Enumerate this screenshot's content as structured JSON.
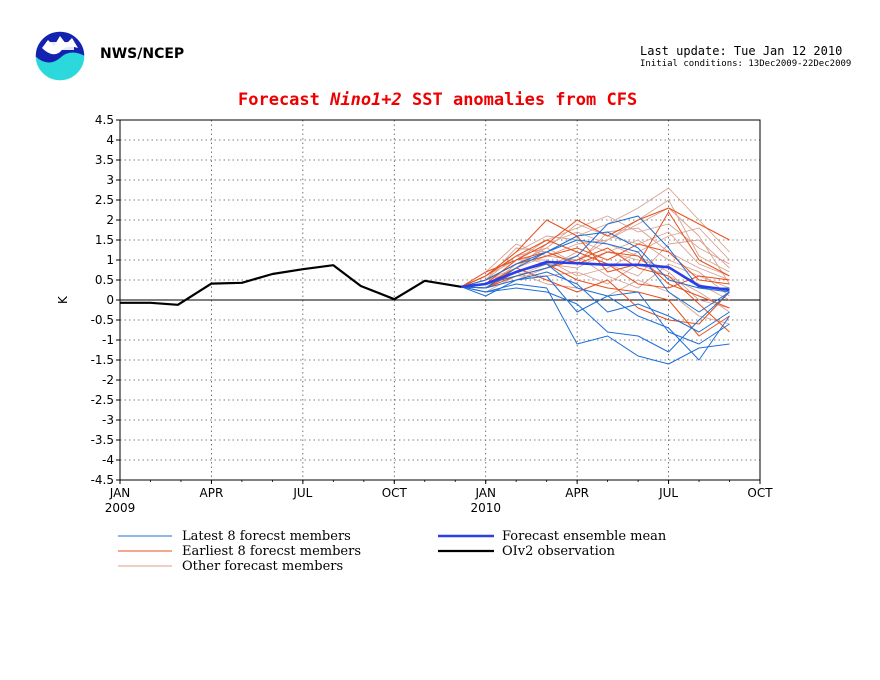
{
  "header": {
    "org": "NWS/NCEP",
    "last_update": "Last update: Tue Jan 12 2010",
    "initial_conditions": "Initial conditions: 13Dec2009-22Dec2009"
  },
  "logo": {
    "icon": "noaa-logo-icon"
  },
  "chart_data": {
    "type": "line",
    "title": {
      "prefix": "Forecast ",
      "italic": "Nino1+2",
      "suffix": " SST anomalies from CFS"
    },
    "ylabel": "K",
    "ylim": [
      -4.5,
      4.5
    ],
    "y_ticks": [
      4.5,
      4,
      3.5,
      3,
      2.5,
      2,
      1.5,
      1,
      0.5,
      0,
      -0.5,
      -1,
      -1.5,
      -2,
      -2.5,
      -3,
      -3.5,
      -4,
      -4.5
    ],
    "y_tick_labels": [
      "4.5",
      "4",
      "3.5",
      "3",
      "2.5",
      "2",
      "1.5",
      "1",
      "0.5",
      "0",
      "-0.5",
      "-1",
      "-1.5",
      "-2",
      "-2.5",
      "-3",
      "-3.5",
      "-4",
      "-4.5"
    ],
    "xlim": [
      0,
      21
    ],
    "x_ticks": [
      {
        "month": 0,
        "label": "JAN",
        "year": "2009"
      },
      {
        "month": 3,
        "label": "APR",
        "year": ""
      },
      {
        "month": 6,
        "label": "JUL",
        "year": ""
      },
      {
        "month": 9,
        "label": "OCT",
        "year": ""
      },
      {
        "month": 12,
        "label": "JAN",
        "year": "2010"
      },
      {
        "month": 15,
        "label": "APR",
        "year": ""
      },
      {
        "month": 18,
        "label": "JUL",
        "year": ""
      },
      {
        "month": 21,
        "label": "OCT",
        "year": ""
      }
    ],
    "grid": true,
    "zero_line": true,
    "colors": {
      "latest": "#1f6fd6",
      "earliest": "#e8501e",
      "other": "#d9a191",
      "mean": "#2a3fe6",
      "obs": "#000000"
    },
    "observation": {
      "name": "OIv2 observation",
      "x": [
        0,
        1,
        1.9,
        3,
        4,
        5,
        6,
        7,
        7.9,
        9,
        10,
        11.2
      ],
      "y": [
        -0.07,
        -0.07,
        -0.12,
        0.41,
        0.43,
        0.65,
        0.77,
        0.87,
        0.35,
        0.02,
        0.48,
        0.33
      ]
    },
    "ensemble_mean": {
      "name": "Forecast ensemble mean",
      "x": [
        11.2,
        12,
        13,
        14,
        15,
        16,
        17,
        18,
        19,
        20
      ],
      "y": [
        0.33,
        0.4,
        0.7,
        0.95,
        0.92,
        0.88,
        0.88,
        0.82,
        0.35,
        0.25
      ]
    },
    "forecast_x": [
      11.2,
      12,
      13,
      14,
      15,
      16,
      17,
      18,
      19,
      20
    ],
    "latest_members": [
      [
        0.33,
        0.3,
        0.5,
        0.6,
        -0.3,
        0.1,
        -0.4,
        -0.7,
        -1.5,
        -0.4
      ],
      [
        0.33,
        0.2,
        0.4,
        0.3,
        -1.1,
        -0.9,
        -1.4,
        -1.6,
        -1.2,
        -1.1
      ],
      [
        0.33,
        0.4,
        0.7,
        0.9,
        0.3,
        0.1,
        0.2,
        -0.8,
        -1.1,
        -0.6
      ],
      [
        0.33,
        0.3,
        0.8,
        1.2,
        1.5,
        1.4,
        1.2,
        0.2,
        -0.3,
        0.2
      ],
      [
        0.33,
        0.2,
        0.3,
        0.2,
        -0.1,
        -0.8,
        -0.9,
        -1.3,
        -0.5,
        0.2
      ],
      [
        0.33,
        0.5,
        0.9,
        1.2,
        1.6,
        1.7,
        1.3,
        0.5,
        0.3,
        0.3
      ],
      [
        0.33,
        0.1,
        0.5,
        0.7,
        0.4,
        -0.3,
        -0.1,
        -0.4,
        -0.8,
        -0.3
      ],
      [
        0.33,
        0.4,
        0.6,
        0.8,
        1.1,
        1.9,
        2.1,
        1.3,
        0.3,
        0.2
      ]
    ],
    "earliest_members": [
      [
        0.33,
        0.4,
        1.0,
        1.4,
        2.0,
        1.6,
        2.0,
        2.3,
        1.9,
        1.5
      ],
      [
        0.33,
        0.5,
        0.9,
        1.1,
        1.3,
        1.0,
        1.4,
        1.2,
        0.5,
        0.4
      ],
      [
        0.33,
        0.6,
        1.2,
        2.0,
        1.6,
        0.7,
        0.9,
        2.2,
        1.0,
        0.6
      ],
      [
        0.33,
        0.3,
        0.7,
        0.9,
        0.5,
        0.3,
        0.2,
        0.0,
        -0.9,
        -0.4
      ],
      [
        0.33,
        0.7,
        1.0,
        1.2,
        0.9,
        1.2,
        1.1,
        0.4,
        0.1,
        -0.2
      ],
      [
        0.33,
        0.4,
        0.8,
        0.5,
        0.2,
        0.5,
        -0.2,
        -0.5,
        -0.6,
        0.2
      ],
      [
        0.33,
        0.6,
        1.1,
        1.5,
        1.2,
        0.9,
        0.4,
        0.3,
        0.6,
        0.5
      ],
      [
        0.33,
        0.3,
        0.6,
        0.8,
        1.0,
        1.3,
        0.8,
        0.6,
        -0.1,
        -0.8
      ]
    ],
    "other_members": [
      [
        0.33,
        0.5,
        1.3,
        1.2,
        1.6,
        1.9,
        2.3,
        2.8,
        2.0,
        1.2
      ],
      [
        0.33,
        0.6,
        1.0,
        1.5,
        1.8,
        2.1,
        1.7,
        1.9,
        1.3,
        0.9
      ],
      [
        0.33,
        0.4,
        0.8,
        1.1,
        1.4,
        1.5,
        1.9,
        2.3,
        1.6,
        0.4
      ],
      [
        0.33,
        0.5,
        1.1,
        0.9,
        0.8,
        1.2,
        1.5,
        1.0,
        0.7,
        0.1
      ],
      [
        0.33,
        0.3,
        0.9,
        1.3,
        1.9,
        1.6,
        1.4,
        1.7,
        0.9,
        0.6
      ],
      [
        0.33,
        0.4,
        0.6,
        0.6,
        0.7,
        0.4,
        0.9,
        0.6,
        0.2,
        -0.3
      ],
      [
        0.33,
        0.7,
        1.4,
        1.1,
        1.0,
        1.5,
        2.0,
        2.5,
        1.1,
        0.7
      ],
      [
        0.33,
        0.5,
        0.7,
        0.4,
        0.3,
        0.1,
        0.5,
        0.2,
        -0.4,
        -0.6
      ],
      [
        0.33,
        0.3,
        0.5,
        0.8,
        1.2,
        0.9,
        0.6,
        1.4,
        1.5,
        0.8
      ],
      [
        0.33,
        0.6,
        1.2,
        1.6,
        1.5,
        1.2,
        1.0,
        0.8,
        0.4,
        0.0
      ],
      [
        0.33,
        0.4,
        1.0,
        1.0,
        0.6,
        0.8,
        1.2,
        1.6,
        1.8,
        1.0
      ],
      [
        0.33,
        0.5,
        0.8,
        1.4,
        1.7,
        1.4,
        1.1,
        0.7,
        0.0,
        -0.2
      ],
      [
        0.33,
        0.2,
        0.6,
        0.9,
        1.1,
        0.6,
        0.3,
        0.9,
        0.6,
        0.3
      ],
      [
        0.33,
        0.6,
        1.1,
        1.3,
        0.9,
        1.7,
        1.8,
        1.2,
        0.8,
        0.5
      ]
    ],
    "legend": [
      {
        "key": "latest",
        "label": "Latest 8 forecst members"
      },
      {
        "key": "earliest",
        "label": "Earliest 8 forecst members"
      },
      {
        "key": "other",
        "label": "Other forecast members"
      },
      {
        "key": "mean",
        "label": "Forecast ensemble mean"
      },
      {
        "key": "obs",
        "label": "OIv2 observation"
      }
    ]
  }
}
